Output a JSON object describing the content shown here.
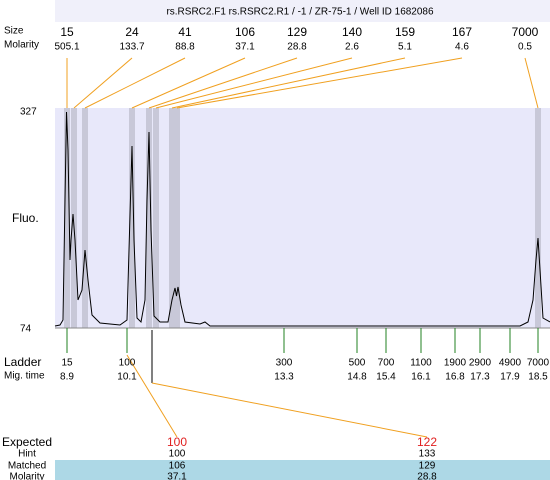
{
  "header": {
    "title": "rs.RSRC2.F1  rs.RSRC2.R1  / -1  / ZR-75-1  / Well ID 1682086"
  },
  "peaks": {
    "size_label": "Size",
    "molarity_label": "Molarity",
    "items": [
      {
        "size": "15",
        "molarity": "505.1"
      },
      {
        "size": "24",
        "molarity": "133.7"
      },
      {
        "size": "41",
        "molarity": "88.8"
      },
      {
        "size": "106",
        "molarity": "37.1"
      },
      {
        "size": "129",
        "molarity": "28.8"
      },
      {
        "size": "140",
        "molarity": "2.6"
      },
      {
        "size": "159",
        "molarity": "5.1"
      },
      {
        "size": "167",
        "molarity": "4.6"
      },
      {
        "size": "7000",
        "molarity": "0.5"
      }
    ]
  },
  "axis": {
    "label": "Fluo.",
    "top": "327",
    "bottom": "74"
  },
  "ladder": {
    "label": "Ladder",
    "time_label": "Mig. time",
    "items": [
      {
        "size": "15",
        "time": "8.9"
      },
      {
        "size": "100",
        "time": "10.1"
      },
      {
        "size": "300",
        "time": "13.3"
      },
      {
        "size": "500",
        "time": "14.8"
      },
      {
        "size": "700",
        "time": "15.4"
      },
      {
        "size": "1100",
        "time": "16.1"
      },
      {
        "size": "1900",
        "time": "16.8"
      },
      {
        "size": "2900",
        "time": "17.3"
      },
      {
        "size": "4900",
        "time": "17.9"
      },
      {
        "size": "7000",
        "time": "18.5"
      }
    ]
  },
  "expected": {
    "labels": [
      "Expected",
      "Hint",
      "Matched",
      "Molarity"
    ],
    "columns": [
      {
        "expected": "100",
        "hint": "100",
        "matched": "106",
        "molarity": "37.1"
      },
      {
        "expected": "122",
        "hint": "133",
        "matched": "129",
        "molarity": "28.8"
      }
    ]
  }
}
